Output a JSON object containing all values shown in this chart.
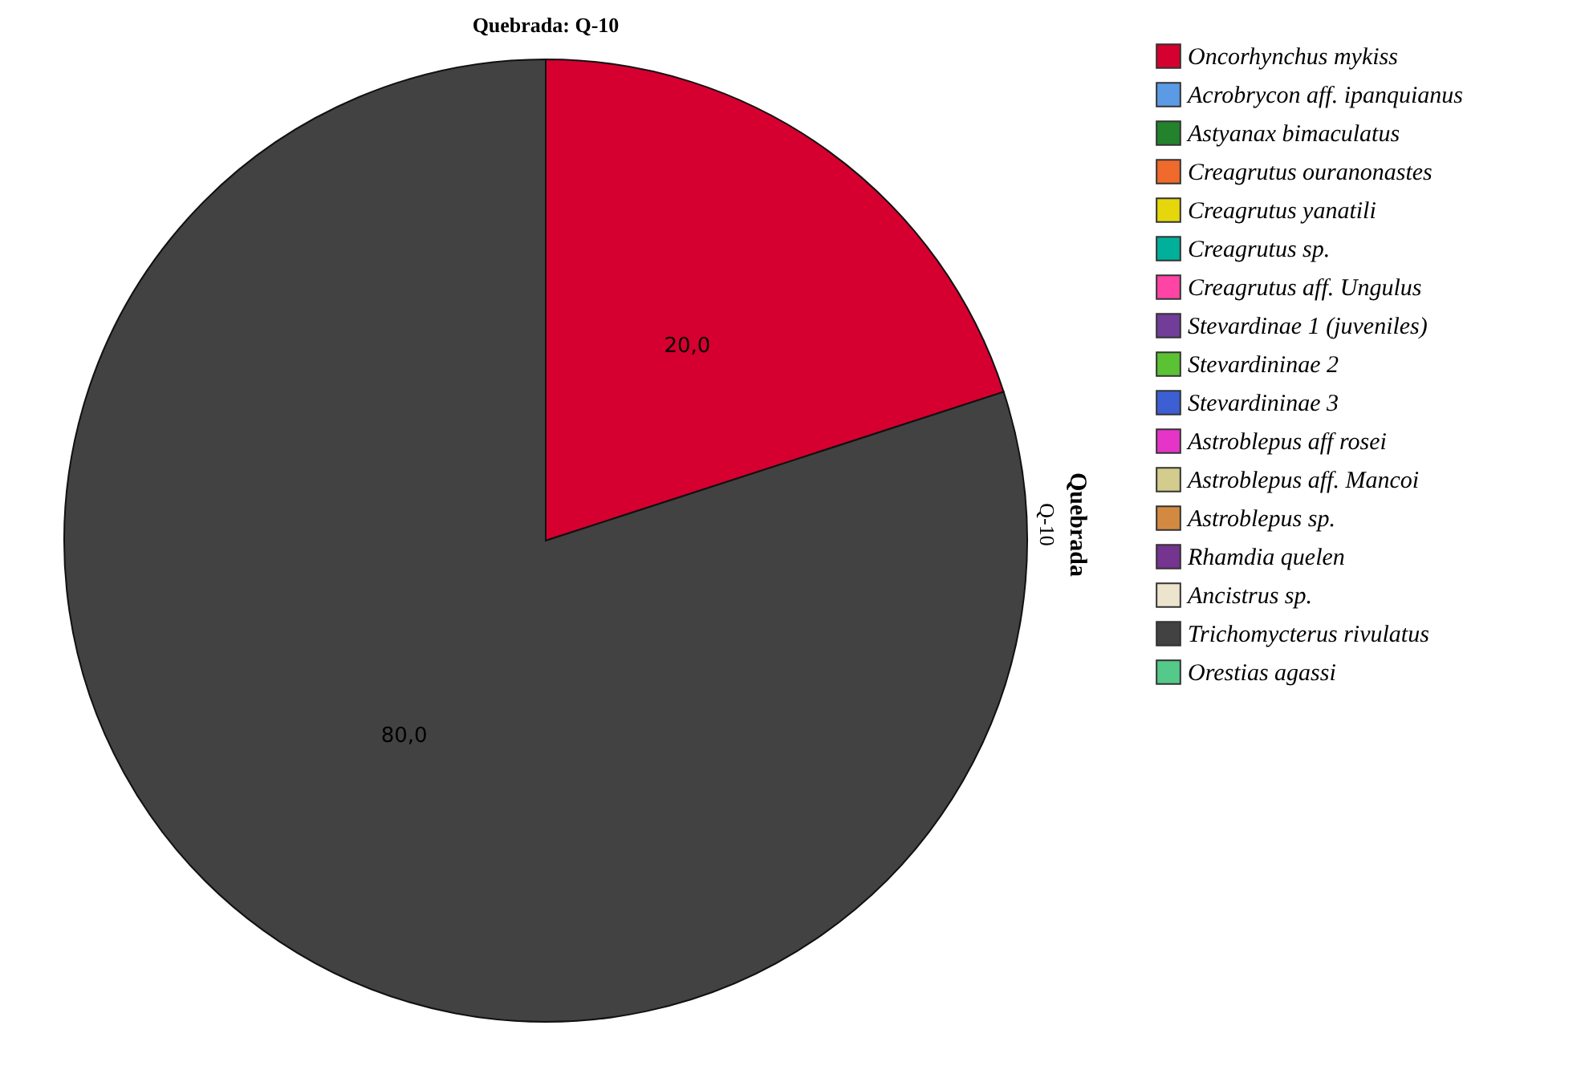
{
  "chart_data": {
    "type": "pie",
    "title": "Quebrada: Q-10",
    "categories": [
      "Oncorhynchus mykiss",
      "Acrobrycon aff. ipanquianus",
      "Astyanax bimaculatus",
      "Creagrutus ouranonastes",
      "Creagrutus yanatili",
      "Creagrutus sp.",
      "Creagrutus aff. Ungulus",
      "Stevardinae 1 (juveniles)",
      "Stevardininae 2",
      "Stevardininae 3",
      "Astroblepus aff rosei",
      "Astroblepus aff. Mancoi",
      "Astroblepus sp.",
      "Rhamdia quelen",
      "Ancistrus sp.",
      "Trichomycterus rivulatus",
      "Orestias agassi"
    ],
    "values": [
      20,
      0,
      0,
      0,
      0,
      0,
      0,
      0,
      0,
      0,
      0,
      0,
      0,
      0,
      0,
      80,
      0
    ],
    "value_labels": [
      "20,0",
      null,
      null,
      null,
      null,
      null,
      null,
      null,
      null,
      null,
      null,
      null,
      null,
      null,
      null,
      "80,0",
      null
    ],
    "colors": [
      "#d5002f",
      "#5b9be6",
      "#23822c",
      "#f06a2c",
      "#e5d70c",
      "#00b09b",
      "#ff44a6",
      "#713d98",
      "#5bc234",
      "#3c5fd4",
      "#e734c8",
      "#d4cc8c",
      "#d38a40",
      "#74348f",
      "#ede4cd",
      "#424242",
      "#55c98a"
    ],
    "annotations": [
      "Quebrada",
      "Q-10"
    ],
    "legend": "right"
  }
}
